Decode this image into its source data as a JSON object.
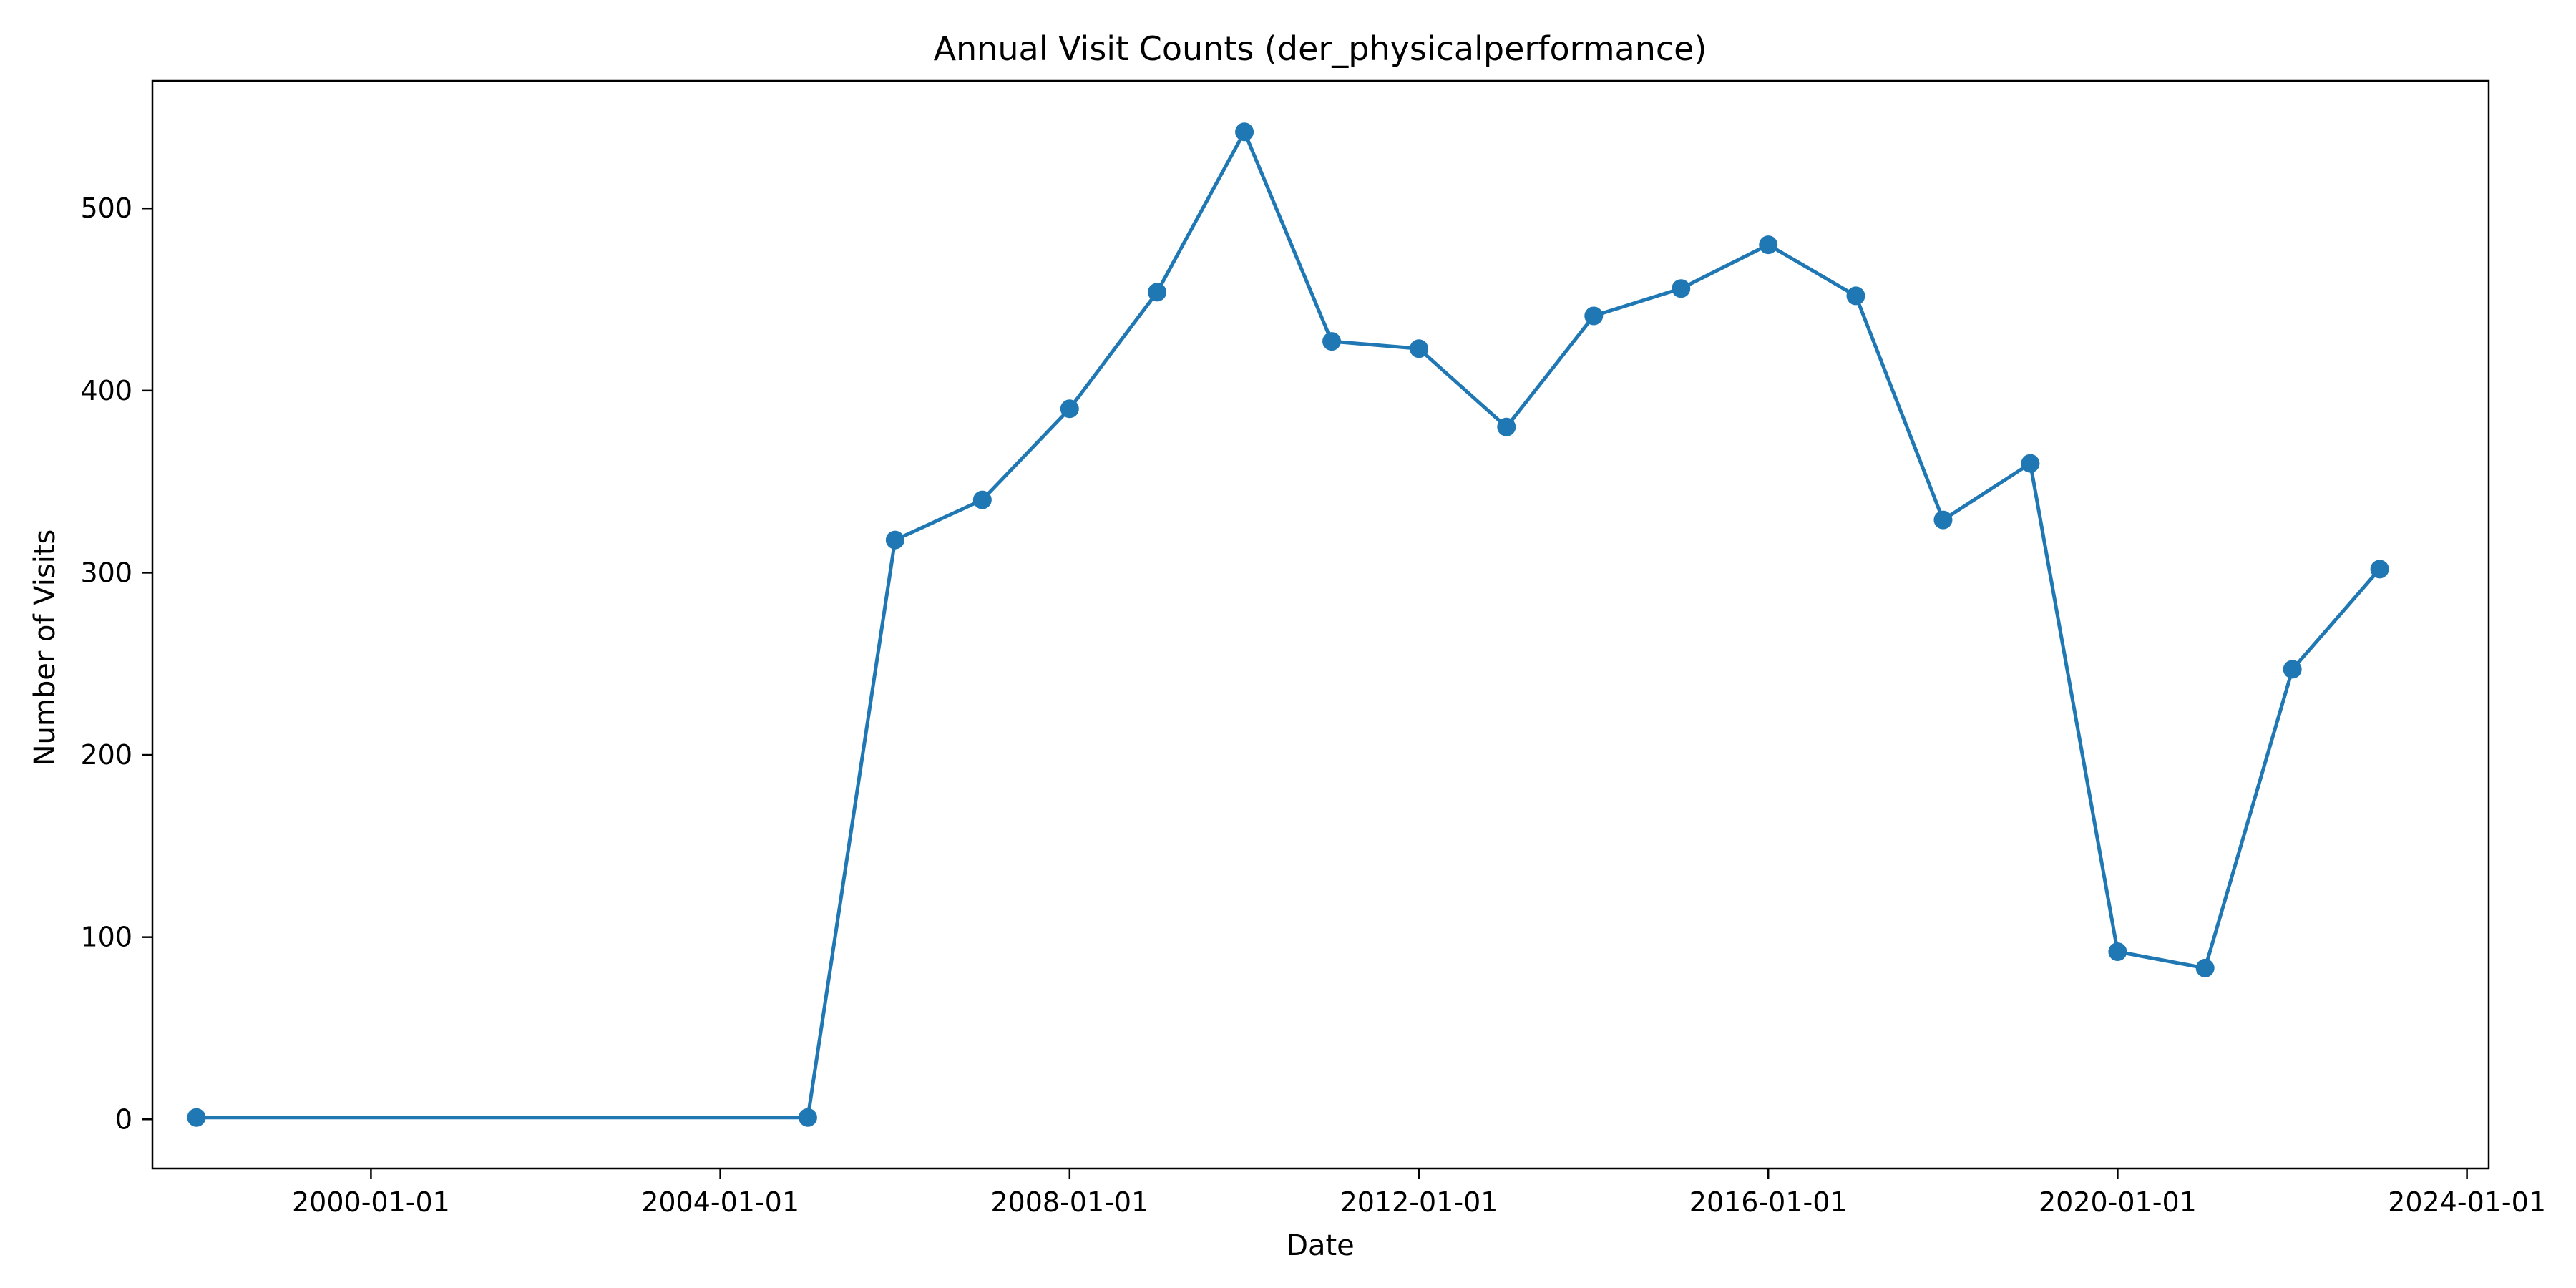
{
  "chart_data": {
    "type": "line",
    "title": "Annual Visit Counts (der_physicalperformance)",
    "xlabel": "Date",
    "ylabel": "Number of Visits",
    "x_ticks": [
      "2000-01-01",
      "2004-01-01",
      "2008-01-01",
      "2012-01-01",
      "2016-01-01",
      "2020-01-01",
      "2024-01-01"
    ],
    "y_ticks": [
      0,
      100,
      200,
      300,
      400,
      500
    ],
    "xlim": [
      "1997-07-01",
      "2024-04-01"
    ],
    "ylim": [
      -27,
      570
    ],
    "grid": false,
    "legend": "none",
    "series_color": "#1f77b4",
    "series": [
      {
        "x": [
          "1998-01-01",
          "2005-01-01",
          "2006-01-01",
          "2007-01-01",
          "2008-01-01",
          "2009-01-01",
          "2010-01-01",
          "2011-01-01",
          "2012-01-01",
          "2013-01-01",
          "2014-01-01",
          "2015-01-01",
          "2016-01-01",
          "2017-01-01",
          "2018-01-01",
          "2019-01-01",
          "2020-01-01",
          "2021-01-01",
          "2022-01-01",
          "2023-01-01"
        ],
        "values": [
          1,
          1,
          318,
          340,
          390,
          454,
          542,
          427,
          423,
          380,
          441,
          456,
          480,
          452,
          329,
          360,
          92,
          83,
          247,
          302
        ]
      }
    ]
  }
}
